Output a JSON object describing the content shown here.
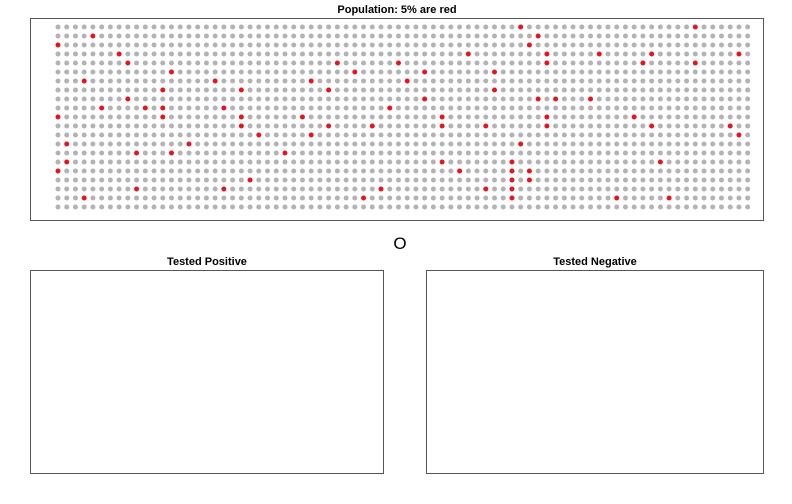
{
  "population": {
    "title": "Population: 5% are red",
    "chart_data": {
      "type": "scatter",
      "title": "Population: 5% are red",
      "grid_rows": 21,
      "grid_cols": 80,
      "colors": {
        "normal": "#b3b3b3",
        "highlight": "#e8141c"
      },
      "red_cells": [
        [
          0,
          53
        ],
        [
          0,
          73
        ],
        [
          1,
          4
        ],
        [
          1,
          55
        ],
        [
          2,
          0
        ],
        [
          2,
          54
        ],
        [
          3,
          7
        ],
        [
          3,
          47
        ],
        [
          3,
          56
        ],
        [
          3,
          62
        ],
        [
          3,
          68
        ],
        [
          3,
          78
        ],
        [
          4,
          8
        ],
        [
          4,
          32
        ],
        [
          4,
          39
        ],
        [
          4,
          56
        ],
        [
          4,
          67
        ],
        [
          4,
          73
        ],
        [
          5,
          13
        ],
        [
          5,
          34
        ],
        [
          5,
          42
        ],
        [
          5,
          50
        ],
        [
          6,
          3
        ],
        [
          6,
          18
        ],
        [
          6,
          29
        ],
        [
          6,
          40
        ],
        [
          7,
          12
        ],
        [
          7,
          21
        ],
        [
          7,
          31
        ],
        [
          7,
          50
        ],
        [
          8,
          8
        ],
        [
          8,
          42
        ],
        [
          8,
          55
        ],
        [
          8,
          57
        ],
        [
          8,
          61
        ],
        [
          9,
          5
        ],
        [
          9,
          10
        ],
        [
          9,
          12
        ],
        [
          9,
          19
        ],
        [
          9,
          38
        ],
        [
          10,
          0
        ],
        [
          10,
          12
        ],
        [
          10,
          21
        ],
        [
          10,
          28
        ],
        [
          10,
          44
        ],
        [
          10,
          56
        ],
        [
          10,
          66
        ],
        [
          11,
          21
        ],
        [
          11,
          31
        ],
        [
          11,
          36
        ],
        [
          11,
          44
        ],
        [
          11,
          49
        ],
        [
          11,
          56
        ],
        [
          11,
          68
        ],
        [
          11,
          77
        ],
        [
          12,
          23
        ],
        [
          12,
          29
        ],
        [
          12,
          78
        ],
        [
          13,
          1
        ],
        [
          13,
          15
        ],
        [
          13,
          53
        ],
        [
          14,
          9
        ],
        [
          14,
          13
        ],
        [
          14,
          26
        ],
        [
          15,
          1
        ],
        [
          15,
          44
        ],
        [
          15,
          52
        ],
        [
          15,
          69
        ],
        [
          16,
          0
        ],
        [
          16,
          46
        ],
        [
          16,
          52
        ],
        [
          16,
          54
        ],
        [
          17,
          22
        ],
        [
          17,
          52
        ],
        [
          17,
          54
        ],
        [
          18,
          9
        ],
        [
          18,
          19
        ],
        [
          18,
          37
        ],
        [
          18,
          49
        ],
        [
          18,
          52
        ],
        [
          19,
          3
        ],
        [
          19,
          35
        ],
        [
          19,
          52
        ],
        [
          19,
          64
        ],
        [
          19,
          70
        ]
      ]
    }
  },
  "marker_text": "O",
  "tested_positive": {
    "title": "Tested Positive"
  },
  "tested_negative": {
    "title": "Tested Negative"
  }
}
